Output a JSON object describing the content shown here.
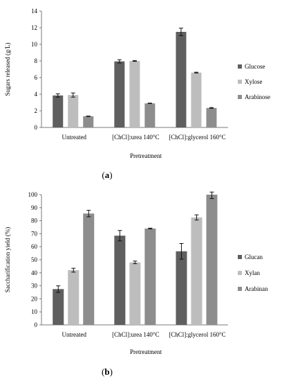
{
  "colors": {
    "series1": "#5f5f5f",
    "series2": "#bdbdbd",
    "series3": "#8d8d8d",
    "axis": "#7a7a7a",
    "error": "#111111"
  },
  "chart_data": [
    {
      "panel_label": "(a)",
      "panel_letter": "a",
      "type": "bar",
      "xlabel": "Pretreatment",
      "ylabel": "Sugars released  (g/L)",
      "ylim": [
        0,
        14
      ],
      "yticks": [
        0,
        2,
        4,
        6,
        8,
        10,
        12,
        14
      ],
      "grid": false,
      "legend_position": "right",
      "categories": [
        "Untreated",
        "[ChCl]:urea 140°C",
        "[ChCl]:glycerol 160°C"
      ],
      "series": [
        {
          "name": "Glucose",
          "values": [
            3.85,
            7.95,
            11.5
          ],
          "errors": [
            0.2,
            0.2,
            0.45
          ]
        },
        {
          "name": "Xylose",
          "values": [
            3.9,
            8.0,
            6.6
          ],
          "errors": [
            0.25,
            0.05,
            0.05
          ]
        },
        {
          "name": "Arabinose",
          "values": [
            1.35,
            2.9,
            2.35
          ],
          "errors": [
            0.03,
            0.03,
            0.05
          ]
        }
      ]
    },
    {
      "panel_label": "(b)",
      "panel_letter": "b",
      "type": "bar",
      "xlabel": "Pretreatment",
      "ylabel": "Saccharification yield (%)",
      "ylim": [
        0,
        100
      ],
      "yticks": [
        0,
        10,
        20,
        30,
        40,
        50,
        60,
        70,
        80,
        90,
        100
      ],
      "grid": false,
      "legend_position": "right",
      "categories": [
        "Untreated",
        "[ChCl]:urea 140°C",
        "[ChCl]:glycerol 160°C"
      ],
      "series": [
        {
          "name": "Glucan",
          "values": [
            27.5,
            68.5,
            56.5
          ],
          "errors": [
            2.5,
            4.0,
            6.0
          ]
        },
        {
          "name": "Xylan",
          "values": [
            42.0,
            48.0,
            82.5
          ],
          "errors": [
            1.5,
            1.0,
            2.0
          ]
        },
        {
          "name": "Arabinan",
          "values": [
            85.5,
            74.0,
            100.0
          ],
          "errors": [
            2.5,
            0.3,
            3.0
          ]
        }
      ]
    }
  ]
}
